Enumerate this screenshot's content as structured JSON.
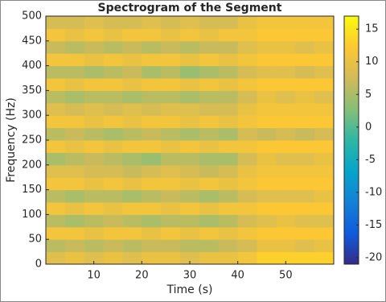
{
  "chart_data": {
    "type": "heatmap",
    "title": "Spectrogram of the Segment",
    "xlabel": "Time (s)",
    "ylabel": "Frequency (Hz)",
    "x": [
      2,
      6,
      10,
      14,
      18,
      22,
      26,
      30,
      34,
      38,
      42,
      46,
      50,
      54,
      58
    ],
    "y": [
      12.5,
      37.5,
      62.5,
      87.5,
      112.5,
      137.5,
      162.5,
      187.5,
      212.5,
      237.5,
      262.5,
      287.5,
      312.5,
      337.5,
      362.5,
      387.5,
      412.5,
      437.5,
      462.5,
      487.5
    ],
    "z": [
      [
        9,
        10,
        9,
        10,
        9,
        10,
        10,
        9,
        10,
        10,
        11,
        13,
        13,
        13,
        13
      ],
      [
        6,
        7,
        6,
        7,
        6,
        7,
        7,
        6,
        6,
        7,
        8,
        10,
        10,
        9,
        10
      ],
      [
        11,
        11,
        10,
        11,
        11,
        10,
        11,
        10,
        11,
        10,
        11,
        12,
        12,
        12,
        12
      ],
      [
        6,
        5,
        6,
        7,
        6,
        5,
        6,
        6,
        5,
        6,
        8,
        9,
        10,
        9,
        9
      ],
      [
        11,
        10,
        11,
        10,
        11,
        11,
        10,
        11,
        10,
        11,
        11,
        12,
        12,
        12,
        12
      ],
      [
        6,
        5,
        6,
        6,
        5,
        6,
        7,
        6,
        5,
        6,
        8,
        9,
        9,
        9,
        10
      ],
      [
        11,
        11,
        10,
        11,
        10,
        11,
        11,
        10,
        11,
        10,
        11,
        12,
        12,
        12,
        12
      ],
      [
        9,
        9,
        8,
        8,
        7,
        8,
        9,
        8,
        7,
        8,
        10,
        11,
        11,
        11,
        11
      ],
      [
        5,
        6,
        7,
        6,
        5,
        4,
        6,
        6,
        5,
        5,
        8,
        10,
        9,
        9,
        10
      ],
      [
        11,
        10,
        11,
        10,
        11,
        11,
        10,
        11,
        10,
        11,
        11,
        12,
        12,
        12,
        12
      ],
      [
        6,
        7,
        6,
        5,
        6,
        7,
        6,
        5,
        6,
        5,
        8,
        7,
        8,
        7,
        8
      ],
      [
        11,
        11,
        10,
        11,
        10,
        11,
        11,
        10,
        11,
        10,
        11,
        12,
        12,
        12,
        12
      ],
      [
        9,
        8,
        9,
        8,
        9,
        8,
        9,
        9,
        8,
        8,
        10,
        11,
        11,
        11,
        11
      ],
      [
        6,
        5,
        6,
        6,
        5,
        6,
        6,
        5,
        6,
        6,
        8,
        10,
        9,
        10,
        9
      ],
      [
        11,
        10,
        11,
        11,
        10,
        11,
        11,
        10,
        11,
        10,
        11,
        12,
        12,
        12,
        12
      ],
      [
        6,
        6,
        5,
        6,
        7,
        5,
        6,
        4,
        5,
        6,
        8,
        9,
        9,
        8,
        9
      ],
      [
        11,
        11,
        10,
        11,
        10,
        11,
        11,
        10,
        11,
        10,
        11,
        12,
        12,
        12,
        12
      ],
      [
        7,
        6,
        7,
        6,
        7,
        6,
        7,
        6,
        7,
        7,
        9,
        10,
        10,
        9,
        10
      ],
      [
        11,
        10,
        11,
        10,
        11,
        11,
        10,
        11,
        10,
        11,
        11,
        12,
        12,
        12,
        12
      ],
      [
        8,
        8,
        9,
        8,
        8,
        9,
        8,
        9,
        8,
        8,
        10,
        11,
        11,
        11,
        11
      ]
    ],
    "xlim": [
      0,
      60
    ],
    "xticks": [
      10,
      20,
      30,
      40,
      50
    ],
    "ylim": [
      0,
      500
    ],
    "yticks": [
      0,
      50,
      100,
      150,
      200,
      250,
      300,
      350,
      400,
      450,
      500
    ],
    "clim": [
      -21,
      17
    ],
    "cticks": [
      -20,
      -15,
      -10,
      -5,
      0,
      5,
      10,
      15
    ],
    "colormap": [
      "#352a87",
      "#0f5cdd",
      "#1481d6",
      "#06a4ca",
      "#2eb7a4",
      "#87bf77",
      "#d1bb59",
      "#fec832",
      "#f9fb0e"
    ]
  }
}
